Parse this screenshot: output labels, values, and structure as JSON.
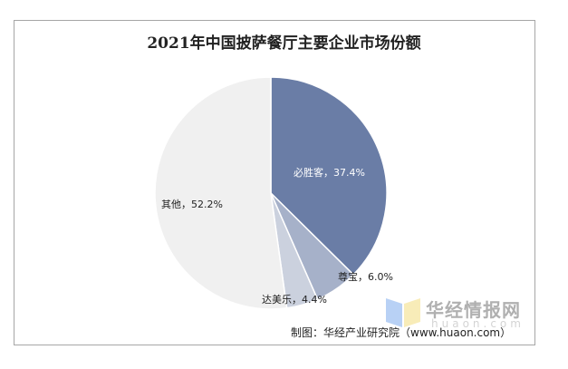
{
  "chart_data": {
    "type": "pie",
    "title": "2021年中国披萨餐厅主要企业市场份额",
    "slices": [
      {
        "label": "必胜客",
        "value": 37.4,
        "text": "必胜客，37.4%",
        "color": "#6a7da6"
      },
      {
        "label": "尊宝",
        "value": 6.0,
        "text": "尊宝，6.0%",
        "color": "#a6b1c9"
      },
      {
        "label": "达美乐",
        "value": 4.4,
        "text": "达美乐，4.4%",
        "color": "#cbd1de"
      },
      {
        "label": "其他",
        "value": 52.2,
        "text": "其他，52.2%",
        "color": "#f0f0f0"
      }
    ],
    "start_angle": "top",
    "direction": "clockwise"
  },
  "source": "制图：华经产业研究院（www.huaon.com）",
  "watermark": {
    "text": "华经情报网",
    "sub": "huaon.com"
  }
}
